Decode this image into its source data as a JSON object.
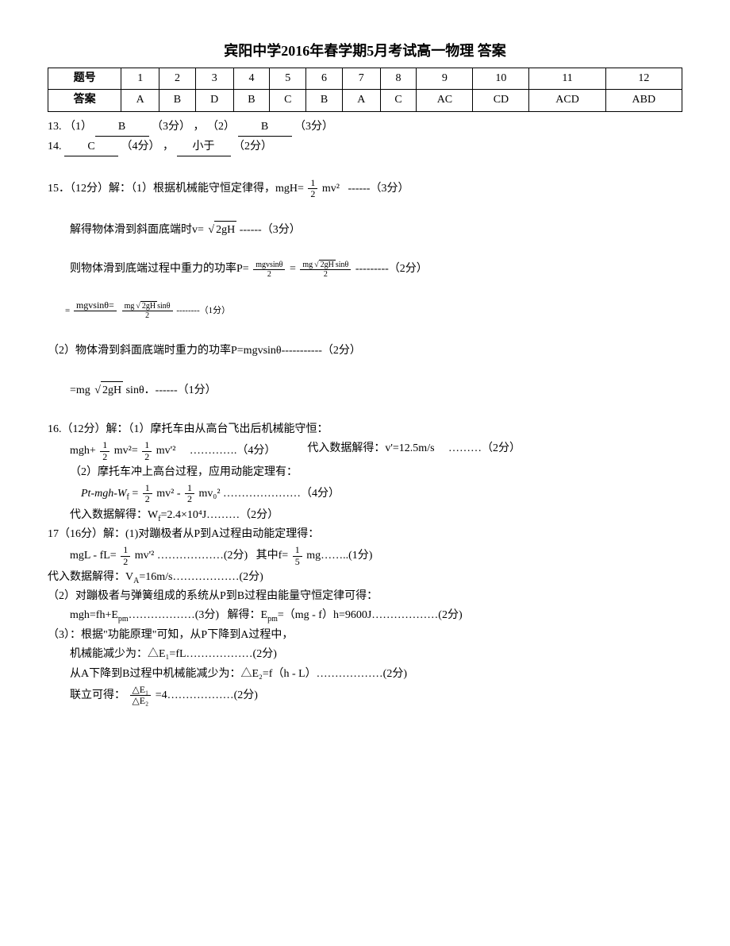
{
  "title": "宾阳中学2016年春学期5月考试高一物理 答案",
  "table": {
    "header_label": "题号",
    "answer_label": "答案",
    "cols": [
      "1",
      "2",
      "3",
      "4",
      "5",
      "6",
      "7",
      "8",
      "9",
      "10",
      "11",
      "12"
    ],
    "answers": [
      "A",
      "B",
      "D",
      "B",
      "C",
      "B",
      "A",
      "C",
      "AC",
      "CD",
      "ACD",
      "ABD"
    ]
  },
  "q13": {
    "label": "13.",
    "p1_prefix": "（1）",
    "p1_blank": "B",
    "p1_pts": "（3分）",
    "sep": "，",
    "p2_prefix": "（2）",
    "p2_blank": "B",
    "p2_pts": "（3分）"
  },
  "q14": {
    "label": "14.",
    "p1_blank": "C",
    "p1_pts": "（4分）",
    "sep": "，",
    "p2_blank": "小于",
    "p2_pts": "（2分）"
  },
  "q15": {
    "label": "15．（12分）解：（1）根据机械能守恒定律得，mgH=",
    "halfmv2_top": "1",
    "halfmv2_bot": "2",
    "halfmv2_tail": "mv²",
    "pts_a": "------（3分）",
    "line2_a": "解得物体滑到斜面底端时v=",
    "sqrt_a": "2gH",
    "line2_b": "------（3分）",
    "line3_a": "则物体滑到底端过程中重力的功率P=",
    "fracP_top": "mgvsinθ",
    "fracP_bot": "2",
    "fracPtop2_head": "mg",
    "fracPtop2_sqrt": "2gH",
    "fracPtop2_tail": "sinθ",
    "line3_b": "---------（2分）",
    "line4_a": "=",
    "line4_head": "mgvsinθ=",
    "line4_b": "--------（1分）",
    "part2_a": "（2）物体滑到斜面底端时重力的功率P=mgvsinθ-----------（2分）",
    "part3_a": "=mg",
    "part3_sqrt": "2gH",
    "part3_b": "sinθ．------（1分）"
  },
  "q16": {
    "label": "16.（12分）解：（1）摩托车由从高台飞出后机械能守恒：",
    "eq1_a": "mgh+",
    "half_top": "1",
    "half_bot": "2",
    "eq1_b": "mv²=",
    "eq1_c": "mv'²",
    "eq1_pts": "………….（4分）",
    "eq1_right": "代入数据解得：v'=12.5m/s",
    "eq1_right_pts": "………（2分）",
    "line2": "（2）摩托车冲上高台过程，应用动能定理有：",
    "eq2_a": "Pt-mgh-W",
    "eq2_sub": "f",
    "eq2_b": "=",
    "eq2_c": "mv² -",
    "eq2_d": "mv₀²",
    "eq2_pts": "…………………（4分）",
    "line3": "代入数据解得：W",
    "line3_sub": "f",
    "line3_b": "=2.4×10⁴J………（2分）"
  },
  "q17": {
    "label": "17（16分）解：(1)对蹦极者从P到A过程由动能定理得：",
    "eq1_a": "mgL - fL=",
    "half_top": "1",
    "half_bot": "2",
    "eq1_b": "mv'²",
    "eq1_pts": "………………(2分)",
    "eq1_mid": "其中f=",
    "fifth_top": "1",
    "fifth_bot": "5",
    "eq1_c": "mg……..(1分)",
    "line2": "代入数据解得：V",
    "line2_sub": "A",
    "line2_b": "=16m/s………………(2分)",
    "line3": "（2）对蹦极者与弹簧组成的系统从P到B过程由能量守恒定律可得：",
    "line4_a": "mgh=fh+E",
    "line4_sub": "pm",
    "line4_pts": "………………(3分)",
    "line4_b": "解得：E",
    "line4_sub2": "pm",
    "line4_c": "=（mg - f）h=9600J………………(2分)",
    "line5": "（3）：根据\"功能原理\"可知，从P下降到A过程中，",
    "line6": "机械能减少为：△E₁=fL………………(2分)",
    "line7": "从A下降到B过程中机械能减少为：△E₂=f（h - L）………………(2分)",
    "line8_a": "联立可得：",
    "ratio_top": "△E₁",
    "ratio_bot": "△E₂",
    "line8_b": "=4………………(2分)"
  },
  "colors": {
    "text": "#000000",
    "bg": "#ffffff",
    "border": "#000000"
  },
  "fonts": {
    "body_size_pt": 10.5,
    "title_size_pt": 14,
    "family": "SimSun"
  }
}
